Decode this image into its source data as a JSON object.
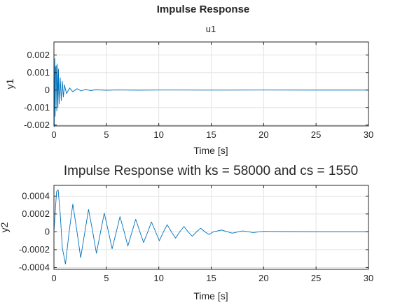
{
  "figure": {
    "suptitle": "Impulse Response",
    "series_color": "#0072bd"
  },
  "chart_data": [
    {
      "type": "line",
      "title": "u1",
      "xlabel": "Time [s]",
      "ylabel": "y1",
      "xlim": [
        0,
        30
      ],
      "ylim": [
        -0.00205,
        0.00275
      ],
      "grid": true,
      "x_ticks": [
        0,
        5,
        10,
        15,
        20,
        25,
        30
      ],
      "x_tick_labels": [
        "0",
        "5",
        "10",
        "15",
        "20",
        "25",
        "30"
      ],
      "y_ticks": [
        -0.002,
        -0.001,
        0,
        0.001,
        0.002
      ],
      "y_tick_labels": [
        "-0.002",
        "-0.001",
        "0",
        "0.001",
        "0.002"
      ],
      "series": [
        {
          "x": [
            0,
            0.03,
            0.08,
            0.12,
            0.17,
            0.22,
            0.27,
            0.32,
            0.38,
            0.43,
            0.5,
            0.6,
            0.7,
            0.8,
            0.9,
            1.0,
            1.2,
            1.5,
            1.8,
            2.2,
            2.6,
            3.0,
            3.5,
            4,
            5,
            6,
            8,
            10,
            15,
            20,
            25,
            30
          ],
          "y": [
            0.0027,
            -0.0021,
            0.0018,
            -0.0015,
            0.0013,
            0.0014,
            -0.0012,
            0.0015,
            -0.001,
            0.0012,
            -0.0008,
            0.0007,
            -0.0006,
            0.0005,
            -0.0004,
            0.0003,
            -0.0002,
            0.00012,
            -0.0001,
            8e-05,
            -5e-05,
            4e-05,
            -3e-05,
            2e-05,
            -1e-05,
            8e-06,
            -5e-06,
            3e-06,
            -2e-06,
            1e-06,
            0,
            0
          ]
        }
      ]
    },
    {
      "type": "line",
      "title": "Impulse Response with ks = 58000 and cs = 1550",
      "xlabel": "Time [s]",
      "ylabel": "y2",
      "xlim": [
        0,
        30
      ],
      "ylim": [
        -0.00042,
        0.00052
      ],
      "grid": true,
      "x_ticks": [
        0,
        5,
        10,
        15,
        20,
        25,
        30
      ],
      "x_tick_labels": [
        "0",
        "5",
        "10",
        "15",
        "20",
        "25",
        "30"
      ],
      "y_ticks": [
        -0.0004,
        -0.0002,
        0,
        0.0002,
        0.0004
      ],
      "y_tick_labels": [
        "-0.0004",
        "-0.0002",
        "0",
        "0.0002",
        "0.0004"
      ],
      "series": [
        {
          "x": [
            0,
            0.25,
            0.4,
            0.6,
            0.8,
            1.1,
            1.45,
            1.8,
            2.2,
            2.55,
            2.95,
            3.3,
            3.7,
            4.05,
            4.45,
            4.8,
            5.2,
            5.55,
            5.95,
            6.3,
            6.7,
            7.05,
            7.45,
            7.8,
            8.2,
            8.55,
            8.95,
            9.3,
            9.7,
            10.05,
            10.45,
            10.8,
            11.2,
            11.6,
            12.0,
            12.4,
            12.8,
            13.2,
            13.6,
            14.0,
            14.4,
            14.8,
            15.2,
            16,
            17,
            18,
            19,
            20,
            22,
            25,
            30
          ],
          "y": [
            0,
            0.00045,
            0.00047,
            0.0002,
            -0.00018,
            -0.00036,
            0.0,
            0.00031,
            0.0,
            -0.00029,
            0.0,
            0.00025,
            0.0,
            -0.00024,
            0.0,
            0.00021,
            0.0,
            -0.00019,
            0.0,
            0.00017,
            0.0,
            -0.00016,
            0.0,
            0.00014,
            0.0,
            -0.00012,
            0.0,
            0.00011,
            0.0,
            -0.0001,
            0.0,
            8e-05,
            0.0,
            -7e-05,
            0.0,
            6e-05,
            0.0,
            -5e-05,
            0.0,
            4e-05,
            0.0,
            -3e-05,
            0.0,
            2e-05,
            -1.5e-05,
            1e-05,
            -8e-06,
            5e-06,
            2e-06,
            0,
            0
          ]
        }
      ]
    }
  ]
}
